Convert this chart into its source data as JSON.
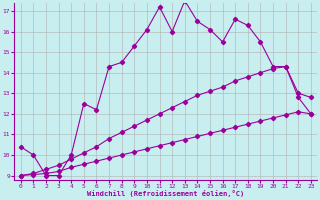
{
  "x_values": [
    0,
    1,
    2,
    3,
    4,
    5,
    6,
    7,
    8,
    9,
    10,
    11,
    12,
    13,
    14,
    15,
    16,
    17,
    18,
    19,
    20,
    21,
    22,
    23
  ],
  "jagged_y": [
    10.4,
    10.0,
    9.0,
    9.0,
    10.0,
    12.5,
    12.2,
    14.3,
    14.5,
    15.3,
    16.1,
    17.2,
    16.0,
    17.5,
    16.5,
    16.1,
    15.5,
    16.6,
    16.3,
    15.5,
    14.3,
    14.3,
    13.0,
    12.8
  ],
  "mid_y": [
    9.0,
    9.1,
    9.3,
    9.5,
    9.8,
    10.1,
    10.4,
    10.8,
    11.1,
    11.4,
    11.7,
    12.0,
    12.3,
    12.6,
    12.9,
    13.1,
    13.3,
    13.6,
    13.8,
    14.0,
    14.2,
    14.3,
    12.8,
    12.0
  ],
  "low_y": [
    9.0,
    9.05,
    9.1,
    9.2,
    9.4,
    9.55,
    9.7,
    9.85,
    10.0,
    10.15,
    10.3,
    10.45,
    10.6,
    10.75,
    10.9,
    11.05,
    11.2,
    11.35,
    11.5,
    11.65,
    11.8,
    11.95,
    12.1,
    12.0
  ],
  "bg_color": "#c8eef0",
  "line_color": "#9b009b",
  "grid_color": "#b0b0b0",
  "xlabel": "Windchill (Refroidissement éolien,°C)",
  "ylim": [
    9,
    17
  ],
  "xlim": [
    0,
    23
  ],
  "yticks": [
    9,
    10,
    11,
    12,
    13,
    14,
    15,
    16,
    17
  ],
  "xticks": [
    0,
    1,
    2,
    3,
    4,
    5,
    6,
    7,
    8,
    9,
    10,
    11,
    12,
    13,
    14,
    15,
    16,
    17,
    18,
    19,
    20,
    21,
    22,
    23
  ]
}
